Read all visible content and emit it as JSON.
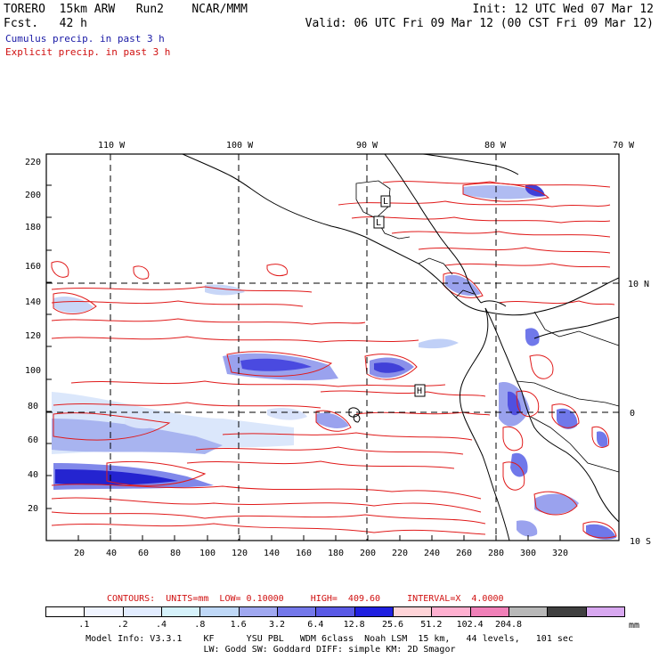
{
  "header": {
    "line1_left": "TORERO  15km ARW   Run2    NCAR/MMM",
    "line1_right": "Init: 12 UTC Wed 07 Mar 12",
    "line2_left": "Fcst.   42 h",
    "line2_right": "Valid: 06 UTC Fri 09 Mar 12 (00 CST Fri 09 Mar 12)",
    "cumulus": "Cumulus precip. in past 3 h",
    "explicit": "Explicit precip. in past 3 h"
  },
  "axes": {
    "lon_labels": [
      "110 W",
      "100 W",
      "90 W",
      "80 W",
      "70 W"
    ],
    "lat_labels": [
      "10 N",
      "0",
      "10 S"
    ],
    "y_ticks": [
      "220",
      "200",
      "180",
      "160",
      "140",
      "120",
      "100",
      "80",
      "60",
      "40",
      "20"
    ],
    "x_ticks": [
      "20",
      "40",
      "60",
      "80",
      "100",
      "120",
      "140",
      "160",
      "180",
      "200",
      "220",
      "240",
      "260",
      "280",
      "300",
      "320"
    ]
  },
  "markers": [
    "L",
    "H",
    "L"
  ],
  "contour_info": {
    "text": "CONTOURS:  UNITS=mm  LOW= 0.10000     HIGH=  409.60     INTERVAL=X  4.0000"
  },
  "colorbar": {
    "colors": [
      "#ffffff",
      "#f0f4ff",
      "#e2ecff",
      "#d6f2fb",
      "#bfd8f7",
      "#a0a8f0",
      "#7478ea",
      "#5a5ae6",
      "#2020e0",
      "#ffd4d8",
      "#ffb0d0",
      "#f080b8",
      "#b8b8b8",
      "#404040",
      "#d8a8f0"
    ],
    "labels": [
      ".1",
      ".2",
      ".4",
      ".8",
      "1.6",
      "3.2",
      "6.4",
      "12.8",
      "25.6",
      "51.2",
      "102.4",
      "204.8"
    ],
    "unit": "mm"
  },
  "footer": {
    "line1": "Model Info: V3.3.1    KF      YSU PBL   WDM 6class  Noah LSM  15 km,   44 levels,   101 sec",
    "line2": "LW: Godd SW: Goddard DIFF: simple KM: 2D Smagor"
  }
}
